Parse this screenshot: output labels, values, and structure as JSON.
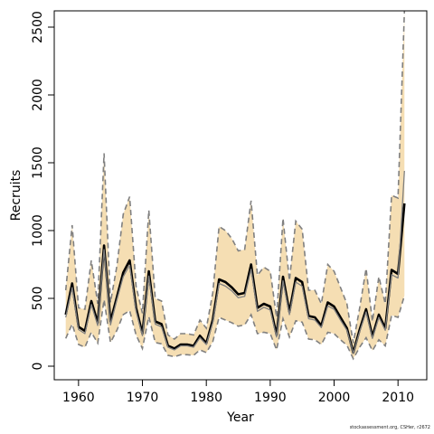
{
  "chart_data": {
    "type": "line",
    "xlabel": "Year",
    "ylabel": "Recruits",
    "xlim": [
      1956.2,
      2014.5
    ],
    "ylim": [
      -100,
      2620
    ],
    "x_ticks": [
      1960,
      1970,
      1980,
      1990,
      2000,
      2010
    ],
    "x_tick_labels": [
      "1960",
      "1970",
      "1980",
      "1990",
      "2000",
      "2010"
    ],
    "y_ticks": [
      0,
      500,
      1000,
      1500,
      2000,
      2500
    ],
    "y_tick_labels": [
      "0",
      "500",
      "1000",
      "1500",
      "2000",
      "2500"
    ],
    "grid": false,
    "legend": "none",
    "colors": {
      "band_fill": "#f5deb3",
      "band_border": "#808080",
      "median_line": "#000000",
      "inner_line": "#808080"
    },
    "x": [
      1958,
      1959,
      1960,
      1961,
      1962,
      1963,
      1964,
      1965,
      1966,
      1967,
      1968,
      1969,
      1970,
      1971,
      1972,
      1973,
      1974,
      1975,
      1976,
      1977,
      1978,
      1979,
      1980,
      1981,
      1982,
      1983,
      1984,
      1985,
      1986,
      1987,
      1988,
      1989,
      1990,
      1991,
      1992,
      1993,
      1994,
      1995,
      1996,
      1997,
      1998,
      1999,
      2000,
      2001,
      2002,
      2003,
      2004,
      2005,
      2006,
      2007,
      2008,
      2009,
      2010,
      2011
    ],
    "series": [
      {
        "role": "estimate",
        "values": [
          380,
          610,
          290,
          260,
          480,
          320,
          890,
          330,
          510,
          690,
          780,
          430,
          240,
          700,
          330,
          310,
          150,
          130,
          160,
          160,
          150,
          225,
          170,
          340,
          640,
          620,
          580,
          530,
          540,
          750,
          430,
          460,
          440,
          230,
          660,
          400,
          650,
          620,
          370,
          360,
          300,
          470,
          440,
          360,
          280,
          100,
          270,
          420,
          220,
          380,
          280,
          710,
          680,
          1200
        ]
      },
      {
        "role": "upper_interval",
        "values": [
          560,
          1040,
          430,
          420,
          780,
          460,
          1570,
          470,
          740,
          1120,
          1250,
          590,
          390,
          1150,
          500,
          480,
          230,
          200,
          240,
          240,
          230,
          340,
          280,
          540,
          1030,
          1000,
          940,
          850,
          860,
          1220,
          670,
          730,
          700,
          360,
          1090,
          630,
          1070,
          1010,
          560,
          560,
          460,
          750,
          700,
          580,
          460,
          170,
          430,
          720,
          330,
          660,
          460,
          1260,
          1240,
          2620
        ]
      },
      {
        "role": "lower_interval",
        "values": [
          205,
          310,
          160,
          140,
          250,
          170,
          490,
          175,
          265,
          380,
          410,
          230,
          130,
          365,
          175,
          165,
          80,
          70,
          85,
          85,
          80,
          120,
          100,
          180,
          360,
          340,
          320,
          295,
          305,
          380,
          240,
          250,
          240,
          120,
          350,
          215,
          335,
          325,
          200,
          195,
          160,
          250,
          240,
          195,
          155,
          55,
          140,
          210,
          115,
          195,
          150,
          375,
          360,
          520
        ]
      },
      {
        "role": "estimate_inner",
        "values": [
          360,
          580,
          270,
          240,
          455,
          300,
          860,
          305,
          490,
          660,
          745,
          405,
          225,
          665,
          310,
          290,
          140,
          120,
          150,
          150,
          140,
          210,
          160,
          320,
          610,
          590,
          555,
          505,
          515,
          715,
          405,
          435,
          415,
          215,
          630,
          380,
          620,
          590,
          350,
          340,
          285,
          445,
          420,
          340,
          265,
          95,
          255,
          400,
          205,
          360,
          265,
          675,
          650,
          1440
        ]
      }
    ]
  },
  "footer_text": "stockassessment.org, CSHer, r2672"
}
